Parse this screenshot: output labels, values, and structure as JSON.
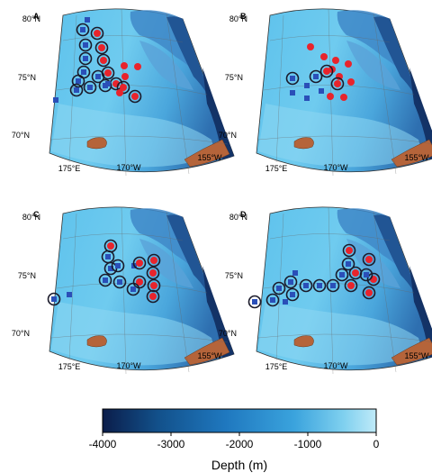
{
  "panels": [
    {
      "letter": "A"
    },
    {
      "letter": "B"
    },
    {
      "letter": "C"
    },
    {
      "letter": "D"
    }
  ],
  "map_labels": {
    "lat_80": "80°N",
    "lat_75": "75°N",
    "lat_70": "70°N",
    "lon_175e": "175°E",
    "lon_170w": "170°W",
    "lon_155w": "155°W"
  },
  "colorbar": {
    "ticks": [
      "-4000",
      "-3000",
      "-2000",
      "-1000",
      "0"
    ],
    "title": "Depth (m)",
    "colors": [
      "#0b1d4a",
      "#12508a",
      "#1f78bf",
      "#3aa3dd",
      "#7fd0ef",
      "#bfeaf8"
    ]
  },
  "legend_colors": {
    "blue_square": "#2a4fb8",
    "red_circle": "#e8242c",
    "ring": "#1a1a2a",
    "land": "#b5643a"
  }
}
